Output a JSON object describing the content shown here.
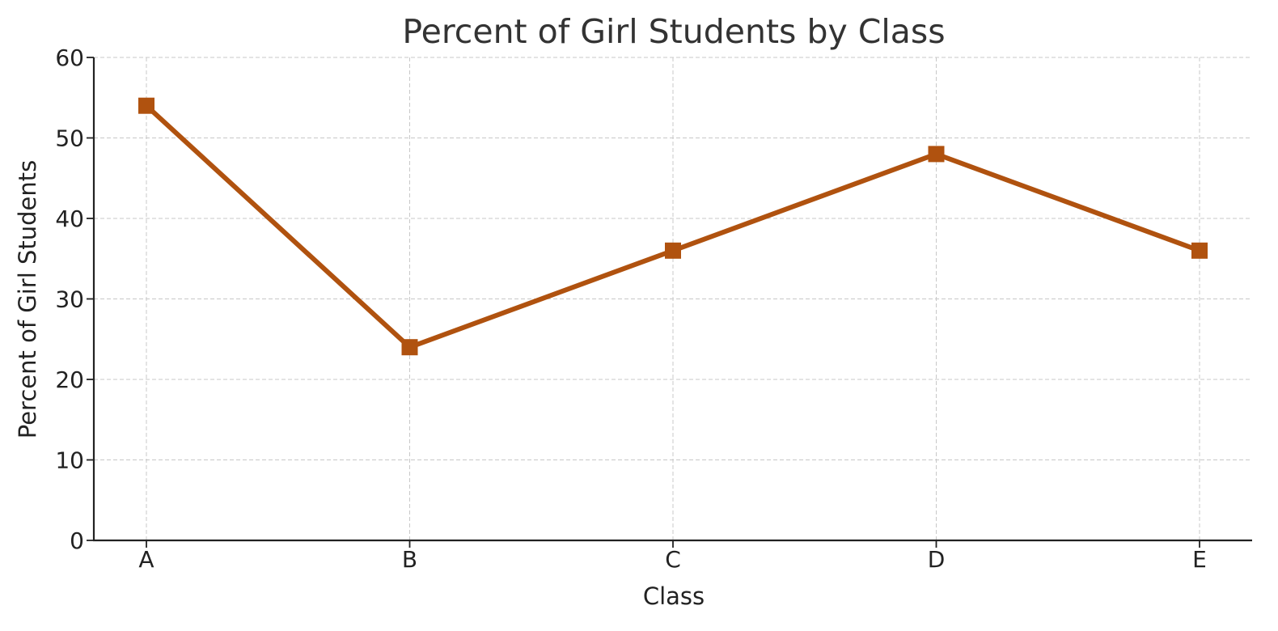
{
  "chart_data": {
    "type": "line",
    "title": "Percent of Girl Students by Class",
    "xlabel": "Class",
    "ylabel": "Percent of Girl Students",
    "categories": [
      "A",
      "B",
      "C",
      "D",
      "E"
    ],
    "series": [
      {
        "values": [
          54,
          24,
          36,
          48,
          36
        ]
      }
    ],
    "ylim": [
      0,
      60
    ],
    "yticks": [
      0,
      10,
      20,
      30,
      40,
      50,
      60
    ],
    "grid": true,
    "marker": "square",
    "colors": {
      "line": "#b0520f",
      "grid": "#c8c8c8",
      "axis": "#222222"
    }
  }
}
